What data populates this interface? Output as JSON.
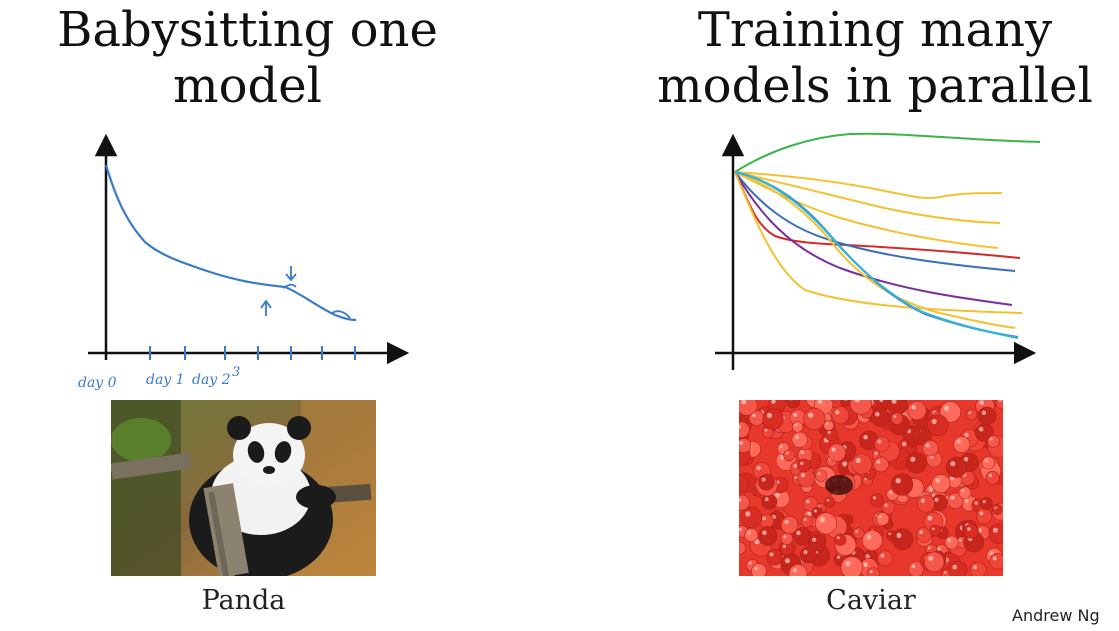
{
  "left": {
    "title_line1": "Babysitting one",
    "title_line2": "model",
    "caption": "Panda",
    "axis_labels": [
      "day 0",
      "day 1",
      "day 2",
      "3"
    ]
  },
  "right": {
    "title_line1": "Training many",
    "title_line2": "models in parallel",
    "caption": "Caviar"
  },
  "credit": "Andrew Ng",
  "colors": {
    "ink": "#3a7bc8",
    "green": "#3cb44b",
    "yellow": "#f2c232",
    "red": "#d42a2a",
    "blue": "#3a6fb8",
    "purple": "#7a2e9b",
    "cyan": "#33b5d9"
  }
}
